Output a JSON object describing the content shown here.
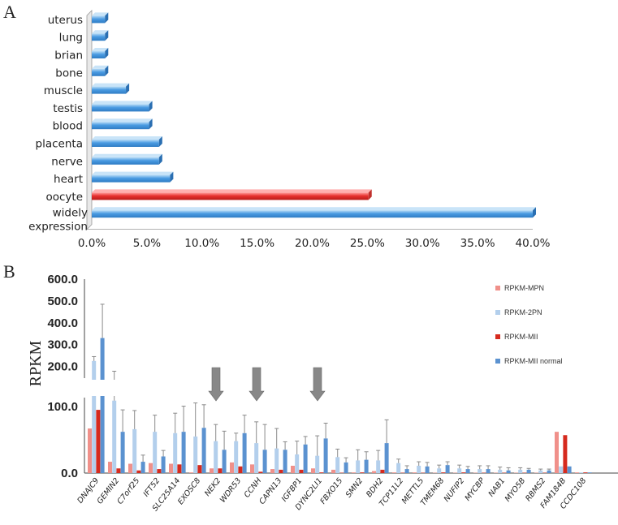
{
  "panels": {
    "a": "A",
    "b": "B"
  },
  "colors": {
    "bar_blue_light": "#aed4f2",
    "bar_blue": "#4a9be2",
    "bar_blue_dark": "#2f7cc4",
    "bar_red_light": "#ff8a8a",
    "bar_red": "#e8302e",
    "bar_red_dark": "#b81d1a",
    "mpn": "#f0908a",
    "twopn": "#b3cfec",
    "mii": "#d62a1e",
    "mii_normal": "#5b92d0",
    "arrow": "#888888"
  },
  "chart_data": [
    {
      "type": "bar",
      "orientation": "horizontal",
      "panel": "A",
      "title": "",
      "categories": [
        "uterus",
        "lung",
        "brian",
        "bone",
        "muscle",
        "testis",
        "blood",
        "placenta",
        "nerve",
        "heart",
        "oocyte",
        "widely expression"
      ],
      "category_lines": [
        [
          "uterus"
        ],
        [
          "lung"
        ],
        [
          "brian"
        ],
        [
          "bone"
        ],
        [
          "muscle"
        ],
        [
          "testis"
        ],
        [
          "blood"
        ],
        [
          "placenta"
        ],
        [
          "nerve"
        ],
        [
          "heart"
        ],
        [
          "oocyte"
        ],
        [
          "widely",
          "expression"
        ]
      ],
      "values": [
        1.2,
        1.2,
        1.2,
        1.2,
        3.1,
        5.2,
        5.2,
        6.1,
        6.1,
        7.1,
        25.1,
        40.0
      ],
      "highlight": "oocyte",
      "xlim": [
        0,
        40
      ],
      "xticks": [
        0,
        5,
        10,
        15,
        20,
        25,
        30,
        35,
        40
      ],
      "xtick_labels": [
        "0.0%",
        "5.0%",
        "10.0%",
        "15.0%",
        "20.0%",
        "25.0%",
        "30.0%",
        "35.0%",
        "40.0%"
      ],
      "xlabel": "",
      "ylabel": ""
    },
    {
      "type": "bar",
      "panel": "B",
      "title": "",
      "ylabel": "RPKM",
      "xlabel": "",
      "y_axis_break": [
        100,
        150
      ],
      "ylim": [
        0,
        600
      ],
      "ytick_labels": [
        "0.0",
        "100.0",
        "200.0",
        "300.0",
        "400.0",
        "500.0",
        "600.0"
      ],
      "categories": [
        "DNAJC9",
        "GEMIN2",
        "C7orf25",
        "IFT52",
        "SLC25A14",
        "EXOSC8",
        "NEK2",
        "WDR53",
        "CCNH",
        "CAPN13",
        "IGFBP1",
        "DYNC2LI1",
        "FBXO15",
        "SMN2",
        "BDH2",
        "TCP11L2",
        "METTL5",
        "TMEM68",
        "NUFIP2",
        "MYCBP",
        "NAB1",
        "MYO5B",
        "RBMS2",
        "FAM184B",
        "CCDC108"
      ],
      "arrows_at": [
        "NEK2",
        "CCNH",
        "DYNC2LI1"
      ],
      "legend": [
        "RPKM-MPN",
        "RPKM-2PN",
        "RPKM-MII",
        "RPKM-MII normal"
      ],
      "series": [
        {
          "name": "RPKM-MPN",
          "values": [
            67,
            17,
            14,
            15,
            14,
            1,
            7,
            16,
            13,
            6,
            11,
            7,
            5,
            1,
            3,
            1,
            1,
            0.5,
            0.5,
            0.5,
            0.5,
            0.5,
            0.5,
            62,
            1
          ],
          "errors": [
            0,
            0,
            0,
            0,
            0,
            0,
            0,
            0,
            0,
            0,
            0,
            0,
            0,
            0,
            0,
            0,
            0,
            0,
            0,
            0,
            0,
            0,
            0,
            0,
            0
          ]
        },
        {
          "name": "RPKM-2PN",
          "values": [
            225,
            133,
            66,
            62,
            60,
            55,
            48,
            48,
            45,
            37,
            28,
            26,
            24,
            19,
            19,
            15,
            11,
            7,
            7,
            6,
            5,
            5,
            4,
            10,
            1
          ],
          "errors": [
            20,
            45,
            28,
            25,
            30,
            65,
            25,
            12,
            32,
            30,
            20,
            30,
            12,
            16,
            15,
            6,
            6,
            5,
            5,
            5,
            4,
            3,
            2,
            0,
            0
          ]
        },
        {
          "name": "RPKM-MII",
          "values": [
            95,
            7,
            4,
            6,
            13,
            12,
            7,
            10,
            2,
            5,
            5,
            1,
            0.5,
            1,
            5,
            0.5,
            0.5,
            1,
            1,
            0.5,
            0.5,
            0.5,
            0.5,
            57,
            1
          ],
          "errors": [
            0,
            0,
            0,
            0,
            0,
            0,
            0,
            0,
            0,
            0,
            0,
            0,
            0,
            0,
            0,
            0,
            0,
            0,
            0,
            0,
            0,
            0,
            0,
            0,
            0
          ]
        },
        {
          "name": "RPKM-MII normal",
          "values": [
            330,
            62,
            17,
            25,
            62,
            68,
            35,
            60,
            35,
            35,
            43,
            52,
            16,
            20,
            45,
            6,
            10,
            12,
            6,
            6,
            4,
            5,
            4,
            10,
            1
          ],
          "errors": [
            155,
            33,
            10,
            9,
            40,
            42,
            28,
            27,
            38,
            12,
            12,
            23,
            7,
            12,
            35,
            5,
            6,
            5,
            4,
            5,
            4,
            2,
            2,
            0,
            0
          ]
        }
      ]
    }
  ]
}
